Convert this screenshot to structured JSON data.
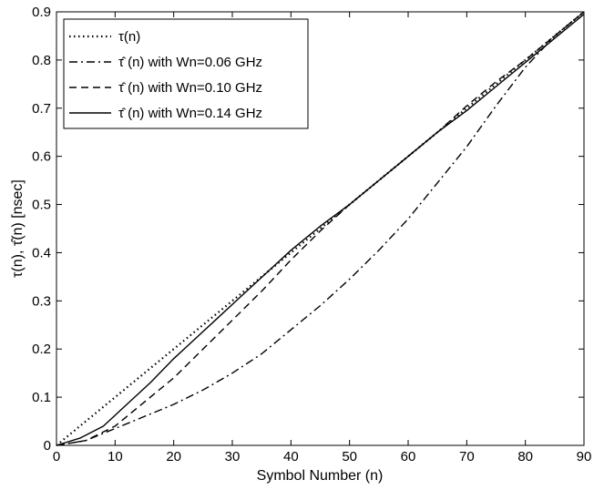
{
  "chart_data": {
    "type": "line",
    "title": "",
    "xlabel": "Symbol Number (n)",
    "ylabel": "τ(n), τ̂(n)  [nsec]",
    "xlim": [
      0,
      90
    ],
    "ylim": [
      0,
      0.9
    ],
    "x_ticks": [
      0,
      10,
      20,
      30,
      40,
      50,
      60,
      70,
      80,
      90
    ],
    "x_tick_labels": [
      "0",
      "10",
      "20",
      "30",
      "40",
      "50",
      "60",
      "70",
      "80",
      "90"
    ],
    "y_ticks": [
      0,
      0.1,
      0.2,
      0.3,
      0.4,
      0.5,
      0.6,
      0.7,
      0.8,
      0.9
    ],
    "y_tick_labels": [
      "0",
      "0.1",
      "0.2",
      "0.3",
      "0.4",
      "0.5",
      "0.6",
      "0.7",
      "0.8",
      "0.9"
    ],
    "grid": false,
    "legend_position": "top-left",
    "series": [
      {
        "name": "τ(n)",
        "style": "dotted",
        "color": "#000000",
        "x": [
          0,
          10,
          20,
          30,
          40,
          50,
          60,
          70,
          80,
          90
        ],
        "y": [
          0,
          0.1,
          0.2,
          0.3,
          0.4,
          0.5,
          0.6,
          0.7,
          0.8,
          0.9
        ]
      },
      {
        "name": "τ̂ (n) with Wn=0.06 GHz",
        "style": "dash-dot",
        "color": "#000000",
        "x": [
          0,
          5,
          10,
          15,
          20,
          25,
          30,
          35,
          40,
          45,
          50,
          55,
          60,
          65,
          70,
          75,
          80,
          85,
          90
        ],
        "y": [
          0,
          0.01,
          0.035,
          0.06,
          0.085,
          0.115,
          0.15,
          0.19,
          0.24,
          0.29,
          0.345,
          0.405,
          0.47,
          0.545,
          0.62,
          0.705,
          0.785,
          0.85,
          0.9
        ]
      },
      {
        "name": "τ̂ (n) with Wn=0.10 GHz",
        "style": "dashed",
        "color": "#000000",
        "x": [
          0,
          5,
          10,
          15,
          20,
          25,
          30,
          35,
          40,
          45,
          50,
          55,
          60,
          65,
          70,
          75,
          80,
          85,
          90
        ],
        "y": [
          0,
          0.01,
          0.04,
          0.09,
          0.14,
          0.2,
          0.26,
          0.32,
          0.385,
          0.445,
          0.5,
          0.55,
          0.6,
          0.65,
          0.705,
          0.755,
          0.8,
          0.85,
          0.9
        ]
      },
      {
        "name": "τ̂ (n) with Wn=0.14 GHz",
        "style": "solid",
        "color": "#000000",
        "x": [
          0,
          4,
          8,
          12,
          16,
          20,
          24,
          28,
          32,
          36,
          40,
          45,
          50,
          55,
          60,
          65,
          70,
          75,
          80,
          85,
          90
        ],
        "y": [
          0,
          0.015,
          0.04,
          0.085,
          0.13,
          0.18,
          0.225,
          0.27,
          0.315,
          0.36,
          0.405,
          0.455,
          0.5,
          0.55,
          0.6,
          0.65,
          0.695,
          0.745,
          0.795,
          0.845,
          0.895
        ]
      }
    ]
  }
}
